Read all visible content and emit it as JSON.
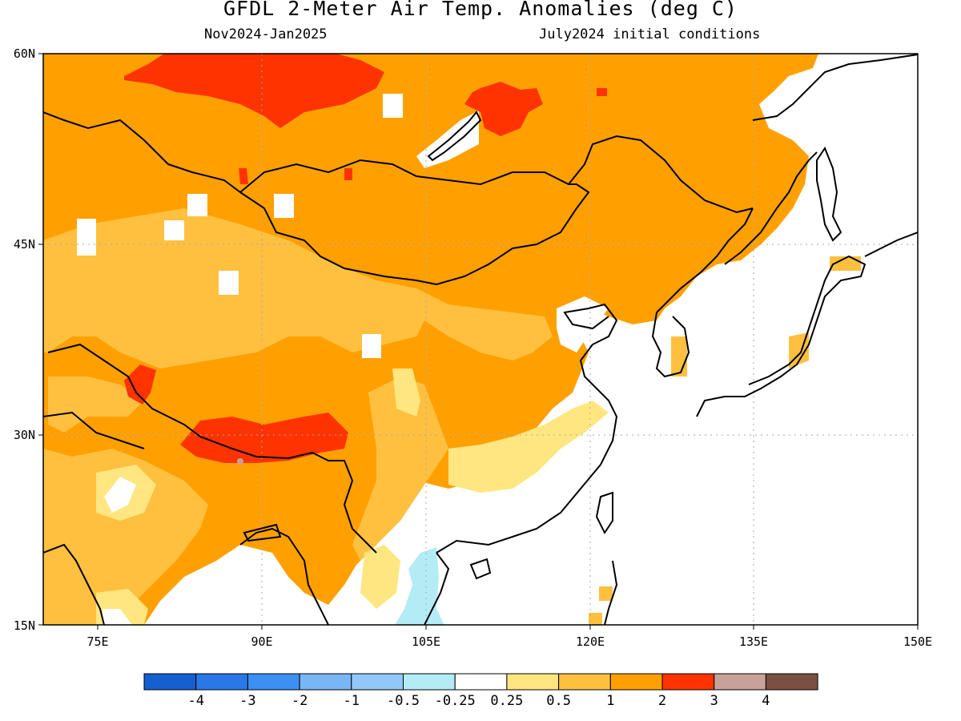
{
  "title": "GFDL 2-Meter Air Temp. Anomalies (deg C)",
  "period": "Nov2024-Jan2025",
  "initial_conditions": "July2024 initial conditions",
  "map": {
    "lat_labels": [
      "60N",
      "45N",
      "30N",
      "15N"
    ],
    "lon_labels": [
      "75E",
      "90E",
      "105E",
      "120E",
      "135E",
      "150E"
    ],
    "lon_range": [
      70,
      150
    ],
    "lat_range": [
      15,
      60
    ]
  },
  "colorbar": {
    "colors": [
      "#1560d0",
      "#2a78e8",
      "#3c90f2",
      "#78b6f6",
      "#92c8f8",
      "#b4ecf6",
      "#ffffff",
      "#ffe680",
      "#ffc040",
      "#ffa000",
      "#ff3300",
      "#c8a298",
      "#7a5040"
    ],
    "labels": [
      "-4",
      "-3",
      "-2",
      "-1",
      "-0.5",
      "-0.25",
      "0.25",
      "0.5",
      "1",
      "2",
      "3",
      "4"
    ]
  },
  "anomaly_colors": {
    "bin_1_2": "#ffa000",
    "bin_05_1": "#ffc040",
    "bin_025_05": "#ffe680",
    "bin_2_3": "#ff3300",
    "bin_neg": "#b4ecf6"
  }
}
